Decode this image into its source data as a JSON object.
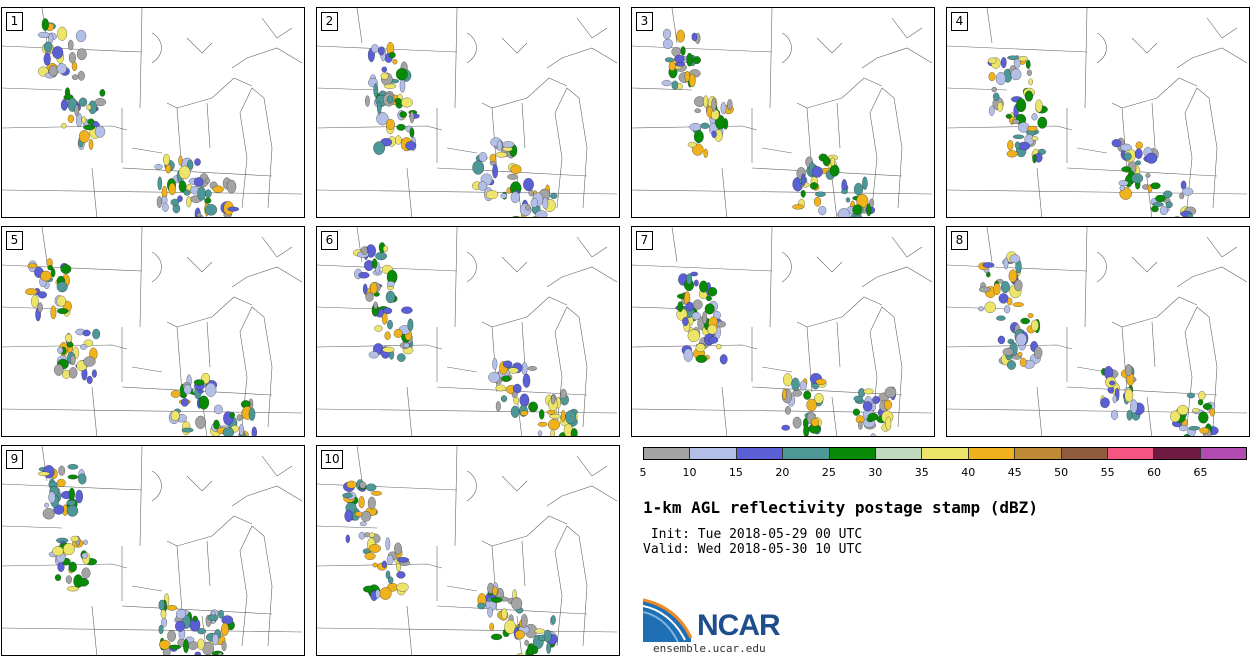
{
  "panels": [
    {
      "label": "1"
    },
    {
      "label": "2"
    },
    {
      "label": "3"
    },
    {
      "label": "4"
    },
    {
      "label": "5"
    },
    {
      "label": "6"
    },
    {
      "label": "7"
    },
    {
      "label": "8"
    },
    {
      "label": "9"
    },
    {
      "label": "10"
    }
  ],
  "colorbar": {
    "colors": [
      "#a3a3a3",
      "#b4bfe8",
      "#5a5fd6",
      "#4d9797",
      "#078b07",
      "#bfdabf",
      "#ede46a",
      "#f0b21c",
      "#bf8a35",
      "#8f5c3d",
      "#f55582",
      "#6f1a40",
      "#b14bb1"
    ],
    "ticks": [
      "5",
      "10",
      "15",
      "20",
      "25",
      "30",
      "35",
      "40",
      "45",
      "50",
      "55",
      "60",
      "65"
    ]
  },
  "title": "1-km AGL reflectivity postage stamp (dBZ)",
  "init": " Init: Tue 2018-05-29 00 UTC",
  "valid": "Valid: Wed 2018-05-30 10 UTC",
  "logo": {
    "text": "NCAR",
    "website": "ensemble.ucar.edu"
  }
}
